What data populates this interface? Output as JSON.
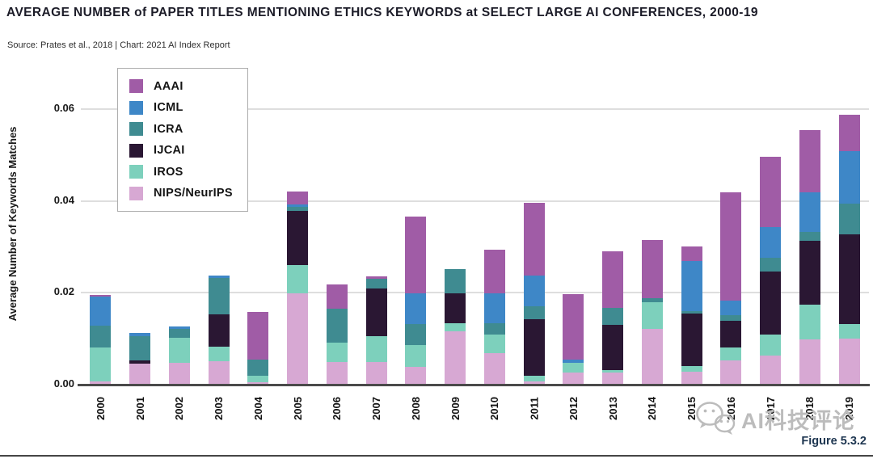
{
  "header": {
    "title": "AVERAGE NUMBER of PAPER TITLES MENTIONING ETHICS KEYWORDS at SELECT LARGE AI CONFERENCES, 2000-19",
    "source": "Source: Prates et al., 2018 | Chart: 2021 AI Index Report"
  },
  "figure_label": "Figure 5.3.2",
  "watermark": {
    "icon": "wechat-logo",
    "text": "AI科技评论"
  },
  "chart_data": {
    "type": "bar",
    "stacked": true,
    "title": "AVERAGE NUMBER of PAPER TITLES MENTIONING ETHICS KEYWORDS at SELECT LARGE AI CONFERENCES, 2000-19",
    "xlabel": "",
    "ylabel": "Average Number of Keywords Matches",
    "ylim": [
      0,
      0.06
    ],
    "grid": true,
    "legend_position": "top-left",
    "yticks": [
      {
        "label": "0.00",
        "value": 0
      },
      {
        "label": "0.02",
        "value": 0.02
      },
      {
        "label": "0.04",
        "value": 0.04
      },
      {
        "label": "0.06",
        "value": 0.06
      }
    ],
    "categories": [
      "2000",
      "2001",
      "2002",
      "2003",
      "2004",
      "2005",
      "2006",
      "2007",
      "2008",
      "2009",
      "2010",
      "2011",
      "2012",
      "2013",
      "2014",
      "2015",
      "2016",
      "2017",
      "2018",
      "2019"
    ],
    "series": [
      {
        "name": "AAAI",
        "color": "#A05CA6",
        "values": [
          0.0004,
          0,
          0,
          0,
          0.0104,
          0.0028,
          0.0053,
          0.0005,
          0.0168,
          0,
          0.0096,
          0.0159,
          0.0142,
          0.0122,
          0.0127,
          0.0032,
          0.0235,
          0.0153,
          0.0135,
          0.0079
        ]
      },
      {
        "name": "ICML",
        "color": "#3E87C7",
        "values": [
          0.0063,
          0.0007,
          0.0005,
          0.0005,
          0,
          0.0005,
          0,
          0,
          0.0066,
          0,
          0.0065,
          0.0067,
          0.0007,
          0,
          0,
          0.011,
          0.0032,
          0.0066,
          0.0086,
          0.0114
        ]
      },
      {
        "name": "ICRA",
        "color": "#3F8B91",
        "values": [
          0.0047,
          0.0053,
          0.002,
          0.0078,
          0.0034,
          0.0008,
          0.0074,
          0.0022,
          0.0047,
          0.0053,
          0.0024,
          0.0028,
          0,
          0.0037,
          0.0009,
          0.0005,
          0.0012,
          0.003,
          0.0019,
          0.0067
        ]
      },
      {
        "name": "IJCAI",
        "color": "#2A1733",
        "values": [
          0,
          0.0007,
          0,
          0.0071,
          0,
          0.0118,
          0,
          0.0103,
          0,
          0.0065,
          0,
          0.0123,
          0,
          0.0099,
          0,
          0.0115,
          0.0059,
          0.0137,
          0.0139,
          0.0195
        ]
      },
      {
        "name": "IROS",
        "color": "#7DD0BC",
        "values": [
          0.0075,
          0,
          0.0055,
          0.0031,
          0.0015,
          0.0062,
          0.0041,
          0.0056,
          0.0047,
          0.0018,
          0.0041,
          0.0013,
          0.0021,
          0.0006,
          0.0058,
          0.0012,
          0.0028,
          0.0047,
          0.0077,
          0.0032
        ]
      },
      {
        "name": "NIPS/NeurIPS",
        "color": "#D7A8D3",
        "values": [
          0.0005,
          0.0044,
          0.0045,
          0.005,
          0.0003,
          0.0197,
          0.0048,
          0.0048,
          0.0037,
          0.0114,
          0.0067,
          0.0005,
          0.0025,
          0.0024,
          0.012,
          0.0026,
          0.0051,
          0.0061,
          0.0096,
          0.0099
        ]
      }
    ]
  }
}
